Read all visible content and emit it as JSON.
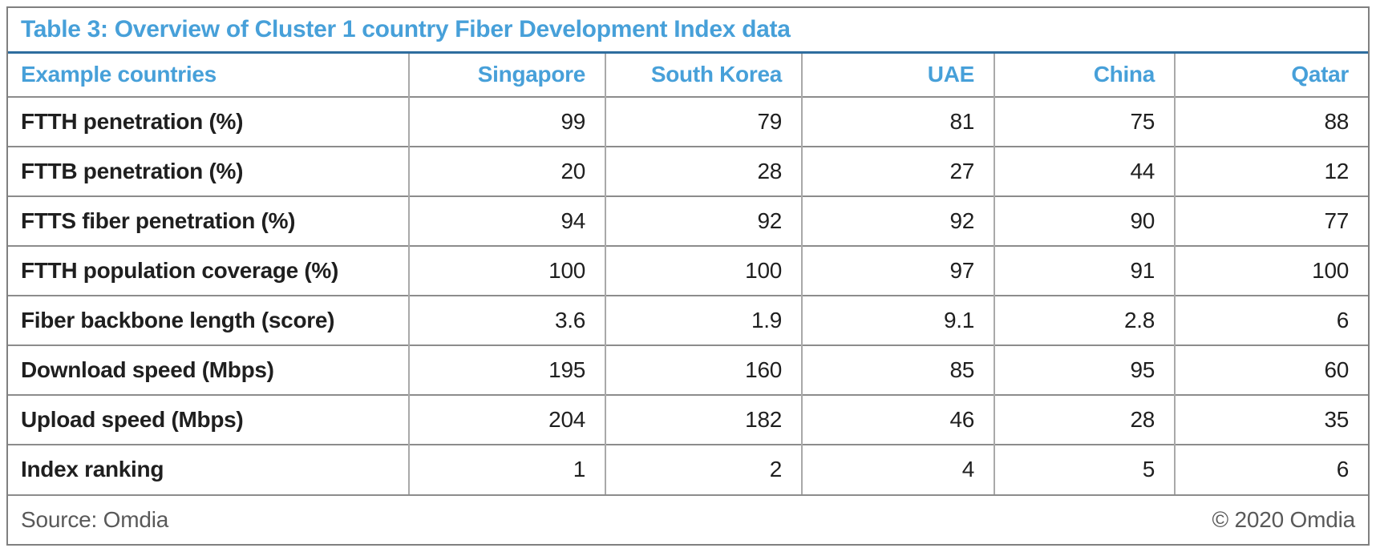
{
  "chart_data": {
    "type": "table",
    "title": "Table 3: Overview of Cluster 1 country Fiber Development Index data",
    "columns": [
      "Example countries",
      "Singapore",
      "South Korea",
      "UAE",
      "China",
      "Qatar"
    ],
    "rows": [
      {
        "label": "FTTH penetration (%)",
        "values": [
          99,
          79,
          81,
          75,
          88
        ]
      },
      {
        "label": "FTTB penetration (%)",
        "values": [
          20,
          28,
          27,
          44,
          12
        ]
      },
      {
        "label": "FTTS fiber penetration (%)",
        "values": [
          94,
          92,
          92,
          90,
          77
        ]
      },
      {
        "label": "FTTH population coverage (%)",
        "values": [
          100,
          100,
          97,
          91,
          100
        ]
      },
      {
        "label": "Fiber backbone length (score)",
        "values": [
          3.6,
          1.9,
          9.1,
          2.8,
          6
        ]
      },
      {
        "label": "Download speed (Mbps)",
        "values": [
          195,
          160,
          85,
          95,
          60
        ]
      },
      {
        "label": "Upload speed (Mbps)",
        "values": [
          204,
          182,
          46,
          28,
          35
        ]
      },
      {
        "label": "Index ranking",
        "values": [
          1,
          2,
          4,
          5,
          6
        ]
      }
    ],
    "footer": {
      "source": "Source: Omdia",
      "copyright": "© 2020 Omdia"
    }
  },
  "colors": {
    "accent_blue": "#47A0D9",
    "title_rule": "#2E6D9E",
    "grid_horizontal": "#8C8C8C",
    "grid_vertical": "#A9A9A9",
    "outer_border": "#808080",
    "text_dark": "#1F1F1F",
    "footer_gray": "#595959"
  }
}
